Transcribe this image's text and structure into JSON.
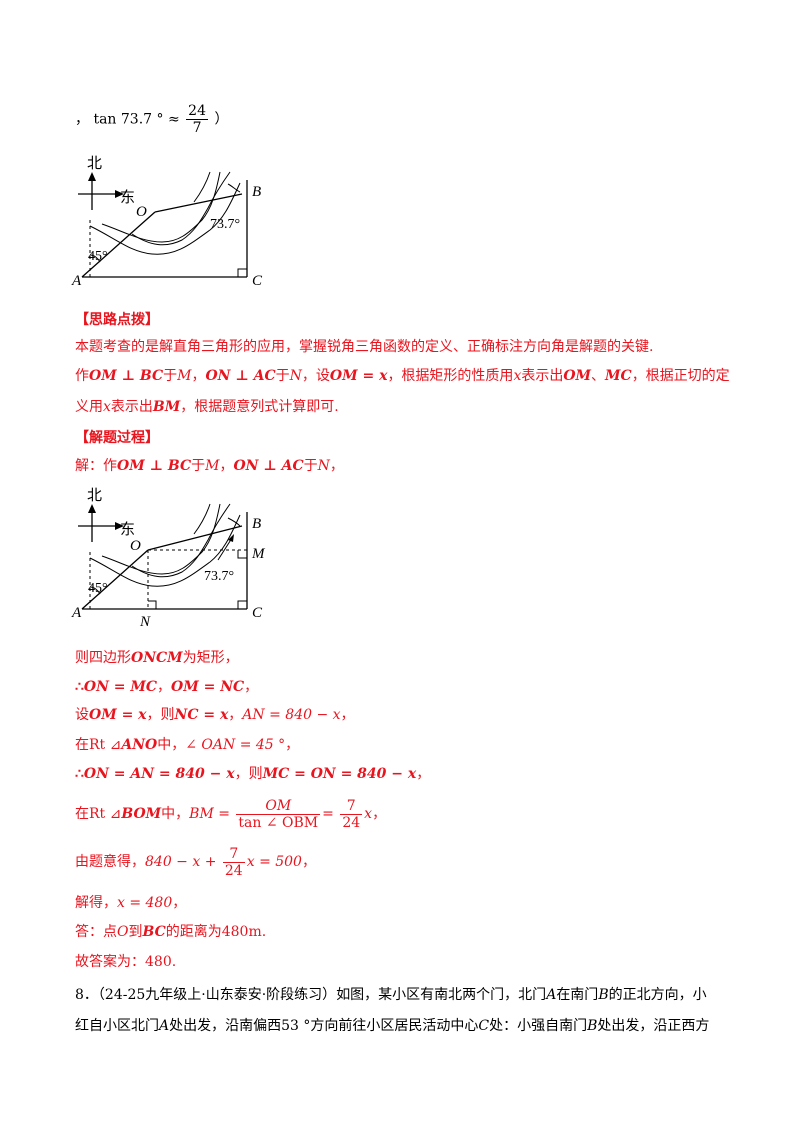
{
  "top_formula": {
    "prefix": "，",
    "tan": "tan 73.7 °",
    "approx": "≈",
    "num": "24",
    "den": "7",
    "suffix": "）"
  },
  "figure1": {
    "north": "北",
    "east": "东",
    "O": "O",
    "B": "B",
    "A": "A",
    "C": "C",
    "angle_b": "73.7°",
    "angle_a": "45°"
  },
  "hint": {
    "heading": "【思路点拨】",
    "p1": "本题考查的是解直角三角形的应用，掌握锐角三角函数的定义、正确标注方向角是解题的关键.",
    "p2": {
      "t1": "作",
      "om_bc": "OM ⊥ BC",
      "t2": "于",
      "M": "M",
      "t3": "，",
      "on_ac": "ON ⊥ AC",
      "t4": "于",
      "N": "N",
      "t5": "，设",
      "om_x": "OM = x",
      "t6": "，根据矩形的性质用",
      "x": "x",
      "t7": "表示出",
      "OM": "OM",
      "t8": "、",
      "MC": "MC",
      "t9": "，根据正切的定"
    },
    "p3": {
      "t1": "义用",
      "x": "x",
      "t2": "表示出",
      "BM": "BM",
      "t3": "，根据题意列式计算即可."
    }
  },
  "solution": {
    "heading": "【解题过程】",
    "l1": {
      "t1": "解：作",
      "om_bc": "OM ⊥ BC",
      "t2": "于",
      "M": "M",
      "t3": "，",
      "on_ac": "ON ⊥ AC",
      "t4": "于",
      "N": "N",
      "t5": "，"
    },
    "l2": {
      "t1": "则四边形",
      "oncm": "ONCM",
      "t2": "为矩形，"
    },
    "l3": {
      "t1": "∴",
      "eq1": "ON = MC",
      "t2": "，",
      "eq2": "OM = NC",
      "t3": "，"
    },
    "l4": {
      "t1": "设",
      "eq1": "OM = x",
      "t2": "，则",
      "eq2": "NC = x",
      "t3": "，",
      "eq3": "AN = 840 − x",
      "t4": "，"
    },
    "l5": {
      "t1": "在",
      "rt": "Rt ⊿",
      "tri": "ANO",
      "t2": "中，",
      "eq": "∠ OAN = 45 °",
      "t3": "，"
    },
    "l6": {
      "t1": "∴",
      "eq1": "ON = AN = 840 − x",
      "t2": "，则",
      "eq2": "MC = ON = 840 − x",
      "t3": "，"
    },
    "l7": {
      "t1": "在",
      "rt": "Rt ⊿",
      "tri": "BOM",
      "t2": "中，",
      "lhs": "BM =",
      "f1_num": "OM",
      "f1_den": "tan ∠ OBM",
      "eq": "=",
      "f2_num": "7",
      "f2_den": "24",
      "x": "x",
      "t3": "，"
    },
    "l8": {
      "t1": "由题意得，",
      "lhs": "840 − x +",
      "f_num": "7",
      "f_den": "24",
      "rhs": "x = 500",
      "t2": "，"
    },
    "l9": {
      "t1": "解得，",
      "eq": "x = 480",
      "t2": "，"
    },
    "l10": {
      "t1": "答：点",
      "O": "O",
      "t2": "到",
      "BC": "BC",
      "t3": "的距离为",
      "val": "480m",
      "t4": "."
    },
    "l11": {
      "t1": "故答案为：",
      "val": "480",
      "t2": "."
    }
  },
  "figure2": {
    "north": "北",
    "east": "东",
    "O": "O",
    "B": "B",
    "M": "M",
    "A": "A",
    "N": "N",
    "C": "C",
    "angle_b": "73.7°",
    "angle_a": "45°"
  },
  "question8": {
    "l1": {
      "num": "8．",
      "src": "（24-25九年级上·山东泰安·阶段练习）",
      "t1": "如图，某小区有南北两个门，北门",
      "A": "A",
      "t2": "在南门",
      "B": "B",
      "t3": "的正北方向，小"
    },
    "l2": {
      "t1": "红自小区北门",
      "A": "A",
      "t2": "处出发，沿南偏西",
      "deg": "53 °",
      "t3": "方向前往小区居民活动中心",
      "C": "C",
      "t4": "处：小强自南门",
      "B": "B",
      "t5": "处出发，沿正西方"
    }
  }
}
